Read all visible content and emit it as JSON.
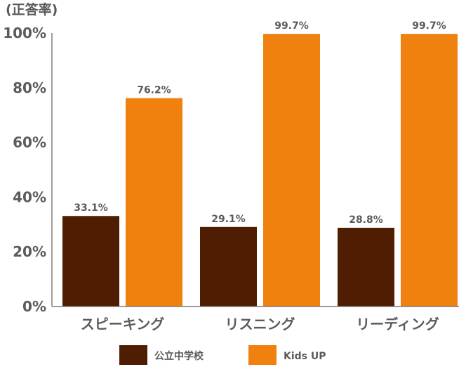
{
  "chart_data": {
    "type": "bar",
    "unit_label": "(正答率)",
    "categories": [
      "スピーキング",
      "リスニング",
      "リーディング"
    ],
    "series": [
      {
        "name": "公立中学校",
        "values": [
          33.1,
          29.1,
          28.8
        ],
        "labels": [
          "33.1%",
          "29.1%",
          "28.8%"
        ],
        "color": "#4f1e02"
      },
      {
        "name": "Kids UP",
        "values": [
          76.2,
          99.7,
          99.7
        ],
        "labels": [
          "76.2%",
          "99.7%",
          "99.7%"
        ],
        "color": "#f0810f"
      }
    ],
    "yticks": [
      {
        "value": 0,
        "label": "0%"
      },
      {
        "value": 20,
        "label": "20%"
      },
      {
        "value": 40,
        "label": "40%"
      },
      {
        "value": 60,
        "label": "60%"
      },
      {
        "value": 80,
        "label": "80%"
      },
      {
        "value": 100,
        "label": "100%"
      }
    ],
    "ylim": [
      0,
      100
    ],
    "grid": false,
    "legend": "bottom",
    "axis_color": "#7f7f7f",
    "text_color": "#5b5b5b"
  }
}
